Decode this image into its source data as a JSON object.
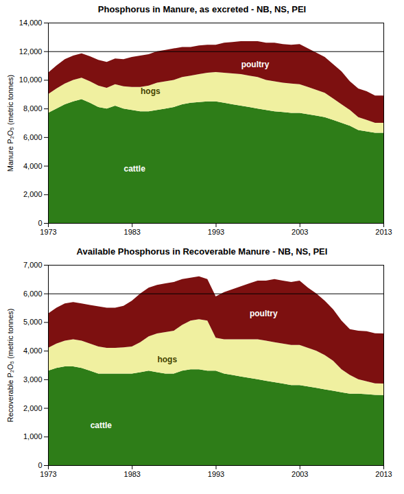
{
  "chart_data": [
    {
      "type": "area",
      "stacked": true,
      "title": "Phosphorus in Manure, as excreted - NB, NS, PEI",
      "ylabel": "Manure P₂O₅ (metric tonnes)",
      "x": [
        1973,
        1974,
        1975,
        1976,
        1977,
        1978,
        1979,
        1980,
        1981,
        1982,
        1983,
        1984,
        1985,
        1986,
        1987,
        1988,
        1989,
        1990,
        1991,
        1992,
        1993,
        1994,
        1995,
        1996,
        1997,
        1998,
        1999,
        2000,
        2001,
        2002,
        2003,
        2004,
        2005,
        2006,
        2007,
        2008,
        2009,
        2010,
        2011,
        2012,
        2013
      ],
      "series": [
        {
          "name": "cattle",
          "color": "#2e7d18",
          "values": [
            7700,
            8000,
            8300,
            8500,
            8650,
            8400,
            8100,
            8000,
            8200,
            8000,
            7900,
            7800,
            7800,
            7900,
            8000,
            8100,
            8300,
            8400,
            8450,
            8500,
            8500,
            8400,
            8300,
            8200,
            8100,
            8000,
            7900,
            7800,
            7750,
            7700,
            7700,
            7600,
            7500,
            7400,
            7200,
            7000,
            6800,
            6500,
            6400,
            6300,
            6300
          ]
        },
        {
          "name": "hogs",
          "color": "#f0f0a0",
          "values": [
            1300,
            1400,
            1450,
            1500,
            1500,
            1500,
            1500,
            1450,
            1500,
            1550,
            1600,
            1700,
            1800,
            1900,
            1900,
            1900,
            1900,
            1900,
            1950,
            2000,
            2050,
            2100,
            2150,
            2200,
            2200,
            2200,
            2100,
            2100,
            2050,
            2050,
            2000,
            1900,
            1800,
            1700,
            1500,
            1300,
            1100,
            900,
            800,
            700,
            700
          ]
        },
        {
          "name": "poultry",
          "color": "#7d1010",
          "values": [
            1500,
            1600,
            1700,
            1700,
            1700,
            1750,
            1800,
            1800,
            1800,
            1900,
            2100,
            2200,
            2200,
            2200,
            2200,
            2200,
            2100,
            2000,
            2000,
            1950,
            1900,
            2100,
            2200,
            2300,
            2400,
            2500,
            2600,
            2700,
            2700,
            2700,
            2800,
            2700,
            2600,
            2500,
            2400,
            2300,
            2000,
            2000,
            2000,
            1900,
            1900
          ]
        }
      ],
      "xlim": [
        1973,
        2013
      ],
      "xticks": [
        1973,
        1983,
        1993,
        2003,
        2013
      ],
      "ylim": [
        0,
        14000
      ],
      "yticks": [
        0,
        {
          "value": 2000,
          "label": "2,000"
        },
        {
          "value": 4000,
          "label": "4,000"
        },
        {
          "value": 6000,
          "label": "6,000"
        },
        {
          "value": 8000,
          "label": "8,000"
        },
        {
          "value": 10000,
          "label": "10,000"
        },
        {
          "value": 12000,
          "label": "12,000"
        },
        {
          "value": 14000,
          "label": "14,000"
        }
      ],
      "hline": 12000,
      "annotations": [
        {
          "text": "cattle",
          "x": 1982,
          "y": 3800,
          "color": "#ffffff"
        },
        {
          "text": "hogs",
          "x": 1984,
          "y": 9200,
          "color": "#444400"
        },
        {
          "text": "poultry",
          "x": 1996,
          "y": 11100,
          "color": "#ffffff"
        }
      ]
    },
    {
      "type": "area",
      "stacked": true,
      "title": "Available Phosphorus in Recoverable Manure - NB, NS, PEI",
      "ylabel": "Recoverable P₂O₅ (metric tonnes)",
      "x": [
        1973,
        1974,
        1975,
        1976,
        1977,
        1978,
        1979,
        1980,
        1981,
        1982,
        1983,
        1984,
        1985,
        1986,
        1987,
        1988,
        1989,
        1990,
        1991,
        1992,
        1993,
        1994,
        1995,
        1996,
        1997,
        1998,
        1999,
        2000,
        2001,
        2002,
        2003,
        2004,
        2005,
        2006,
        2007,
        2008,
        2009,
        2010,
        2011,
        2012,
        2013
      ],
      "series": [
        {
          "name": "cattle",
          "color": "#2e7d18",
          "values": [
            3300,
            3400,
            3450,
            3450,
            3400,
            3300,
            3200,
            3200,
            3200,
            3200,
            3200,
            3250,
            3300,
            3250,
            3200,
            3200,
            3300,
            3350,
            3350,
            3300,
            3300,
            3200,
            3150,
            3100,
            3050,
            3000,
            2950,
            2900,
            2850,
            2800,
            2800,
            2750,
            2700,
            2650,
            2600,
            2550,
            2500,
            2500,
            2480,
            2460,
            2450
          ]
        },
        {
          "name": "hogs",
          "color": "#f0f0a0",
          "values": [
            800,
            850,
            900,
            950,
            950,
            950,
            950,
            900,
            900,
            920,
            950,
            1050,
            1200,
            1350,
            1450,
            1500,
            1600,
            1700,
            1750,
            1750,
            1150,
            1200,
            1250,
            1300,
            1350,
            1400,
            1400,
            1400,
            1400,
            1400,
            1400,
            1350,
            1300,
            1200,
            1050,
            800,
            650,
            500,
            450,
            400,
            400
          ]
        },
        {
          "name": "poultry",
          "color": "#7d1010",
          "values": [
            1200,
            1250,
            1300,
            1300,
            1300,
            1350,
            1400,
            1400,
            1400,
            1450,
            1600,
            1700,
            1700,
            1700,
            1700,
            1700,
            1600,
            1500,
            1500,
            1450,
            1450,
            1650,
            1750,
            1850,
            1950,
            2050,
            2100,
            2200,
            2200,
            2200,
            2250,
            2100,
            2000,
            1900,
            1800,
            1700,
            1600,
            1700,
            1750,
            1750,
            1750
          ]
        }
      ],
      "xlim": [
        1973,
        2013
      ],
      "xticks": [
        1973,
        1983,
        1993,
        2003,
        2013
      ],
      "ylim": [
        0,
        7000
      ],
      "yticks": [
        0,
        {
          "value": 1000,
          "label": "1,000"
        },
        {
          "value": 2000,
          "label": "2,000"
        },
        {
          "value": 3000,
          "label": "3,000"
        },
        {
          "value": 4000,
          "label": "4,000"
        },
        {
          "value": 5000,
          "label": "5,000"
        },
        {
          "value": 6000,
          "label": "6,000"
        },
        {
          "value": 7000,
          "label": "7,000"
        }
      ],
      "hline": 6000,
      "annotations": [
        {
          "text": "cattle",
          "x": 1978,
          "y": 1400,
          "color": "#ffffff"
        },
        {
          "text": "hogs",
          "x": 1986,
          "y": 3700,
          "color": "#444400"
        },
        {
          "text": "poultry",
          "x": 1997,
          "y": 5300,
          "color": "#ffffff"
        }
      ]
    }
  ]
}
